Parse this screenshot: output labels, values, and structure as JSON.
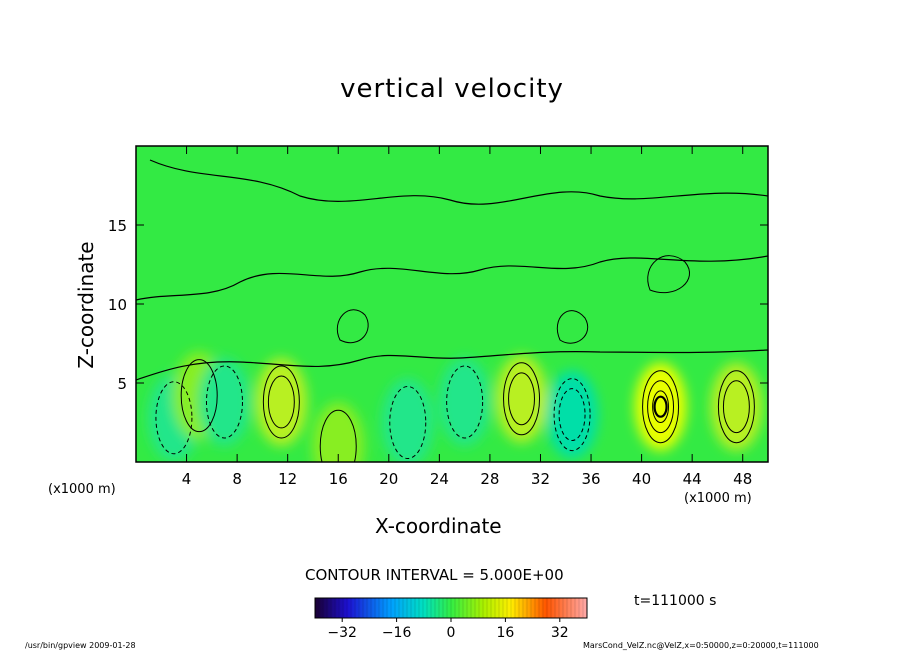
{
  "chart_data": {
    "type": "heatmap",
    "title": "vertical velocity",
    "xlabel": "X-coordinate",
    "ylabel": "Z-coordinate",
    "x_unit_label": "(x1000 m)",
    "xlim": [
      0,
      50
    ],
    "ylim": [
      0,
      20
    ],
    "x_ticks": [
      4,
      8,
      12,
      16,
      20,
      24,
      28,
      32,
      36,
      40,
      44,
      48
    ],
    "y_ticks": [
      5,
      10,
      15
    ],
    "contour_interval_text": "CONTOUR INTERVAL = 5.000E+00",
    "contour_interval": 5.0,
    "colorbar": {
      "ticks": [
        -32,
        -16,
        0,
        16,
        32
      ],
      "range": [
        -40,
        40
      ]
    },
    "features": [
      {
        "x": 3.0,
        "z": 2.8,
        "value": -5
      },
      {
        "x": 5.0,
        "z": 4.2,
        "value": 5
      },
      {
        "x": 7.0,
        "z": 3.8,
        "value": -5
      },
      {
        "x": 11.5,
        "z": 3.8,
        "value": 10
      },
      {
        "x": 16.0,
        "z": 1.0,
        "value": 5
      },
      {
        "x": 21.5,
        "z": 2.5,
        "value": -5
      },
      {
        "x": 26.0,
        "z": 3.8,
        "value": -5
      },
      {
        "x": 30.5,
        "z": 4.0,
        "value": 10
      },
      {
        "x": 34.5,
        "z": 3.0,
        "value": -10
      },
      {
        "x": 41.5,
        "z": 3.5,
        "value": 20
      },
      {
        "x": 47.5,
        "z": 3.5,
        "value": 10
      }
    ],
    "time_text": "t=111000 s"
  },
  "footer": {
    "left": "/usr/bin/gpview  2009-01-28",
    "right": "MarsCond_VelZ.nc@VelZ,x=0:50000,z=0:20000,t=111000"
  }
}
